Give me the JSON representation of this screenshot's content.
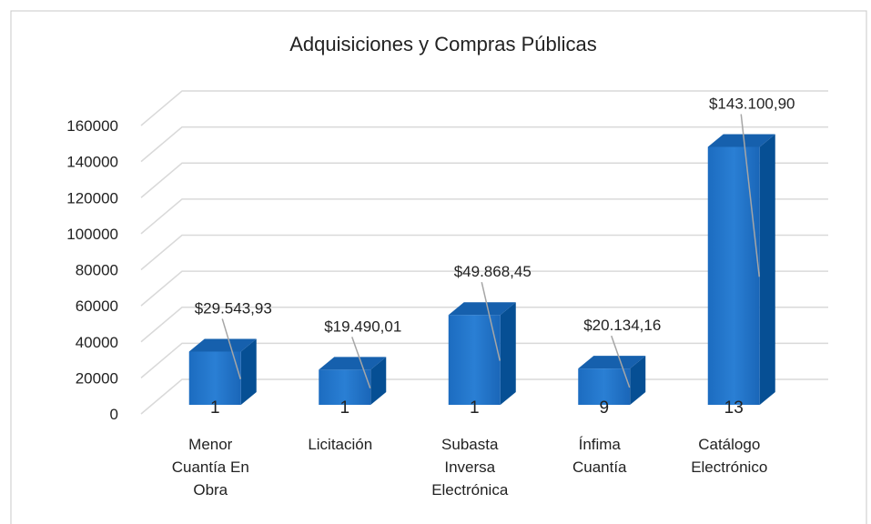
{
  "chart_data": {
    "type": "bar3d",
    "title": "Adquisiciones y Compras Públicas",
    "categories": [
      [
        "Menor",
        "Cuantía En",
        "Obra"
      ],
      [
        "Licitación"
      ],
      [
        "Subasta",
        "Inversa",
        "Electrónica"
      ],
      [
        "Ínfima",
        "Cuantía"
      ],
      [
        "Catálogo",
        "Electrónico"
      ]
    ],
    "values": [
      29543.93,
      19490.01,
      49868.45,
      20134.16,
      143100.9
    ],
    "value_labels": [
      "$29.543,93",
      "$19.490,01",
      "$49.868,45",
      "$20.134,16",
      "$143.100,90"
    ],
    "counts": [
      1,
      1,
      1,
      9,
      13
    ],
    "color": "#1f6fc5",
    "ylim": [
      0,
      160000
    ],
    "yticks": [
      0,
      20000,
      40000,
      60000,
      80000,
      100000,
      120000,
      140000,
      160000
    ],
    "grid": true
  }
}
